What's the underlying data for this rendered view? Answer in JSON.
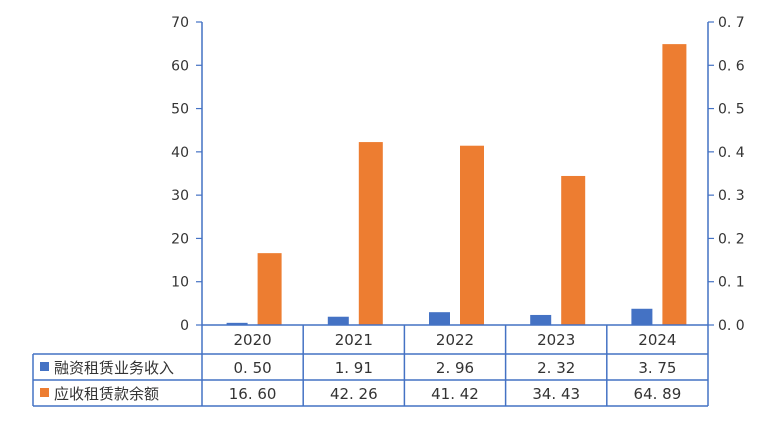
{
  "chart_data": {
    "type": "bar",
    "categories": [
      "2020",
      "2021",
      "2022",
      "2023",
      "2024"
    ],
    "series": [
      {
        "name": "融资租赁业务收入",
        "values": [
          0.5,
          1.91,
          2.96,
          2.32,
          3.75
        ],
        "display": [
          "0. 50",
          "1. 91",
          "2. 96",
          "2. 32",
          "3. 75"
        ],
        "color": "#4472C4"
      },
      {
        "name": "应收租赁款余额",
        "values": [
          16.6,
          42.26,
          41.42,
          34.43,
          64.89
        ],
        "display": [
          "16. 60",
          "42. 26",
          "41. 42",
          "34. 43",
          "64. 89"
        ],
        "color": "#ED7D31"
      }
    ],
    "left_axis": {
      "min": 0,
      "max": 70,
      "step": 10,
      "tick_labels": [
        "0",
        "10",
        "20",
        "30",
        "40",
        "50",
        "60",
        "70"
      ]
    },
    "right_axis": {
      "min": 0,
      "max": 0.7,
      "step": 0.1,
      "tick_labels": [
        "0. 0",
        "0. 1",
        "0. 2",
        "0. 3",
        "0. 4",
        "0. 5",
        "0. 6",
        "0. 7"
      ]
    },
    "data_table": true,
    "legend": "in-table",
    "axis_color": "#4472C4",
    "title": "",
    "xlabel": "",
    "ylabel": ""
  }
}
